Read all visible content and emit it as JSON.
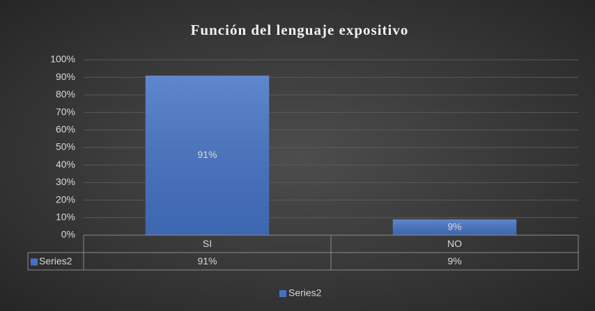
{
  "chart_data": {
    "type": "bar",
    "title": "Función del lenguaje expositivo",
    "categories": [
      "SI",
      "NO"
    ],
    "series": [
      {
        "name": "Series2",
        "color": "#4472c4",
        "values": [
          91,
          9
        ],
        "value_labels": [
          "91%",
          "9%"
        ]
      }
    ],
    "ylim": [
      0,
      100
    ],
    "yticks": [
      {
        "value": 0,
        "label": "0%"
      },
      {
        "value": 10,
        "label": "10%"
      },
      {
        "value": 20,
        "label": "20%"
      },
      {
        "value": 30,
        "label": "30%"
      },
      {
        "value": 40,
        "label": "40%"
      },
      {
        "value": 50,
        "label": "50%"
      },
      {
        "value": 60,
        "label": "60%"
      },
      {
        "value": 70,
        "label": "70%"
      },
      {
        "value": 80,
        "label": "80%"
      },
      {
        "value": 90,
        "label": "90%"
      },
      {
        "value": 100,
        "label": "100%"
      }
    ],
    "grid": true,
    "legend": "bottom",
    "data_table": true
  }
}
